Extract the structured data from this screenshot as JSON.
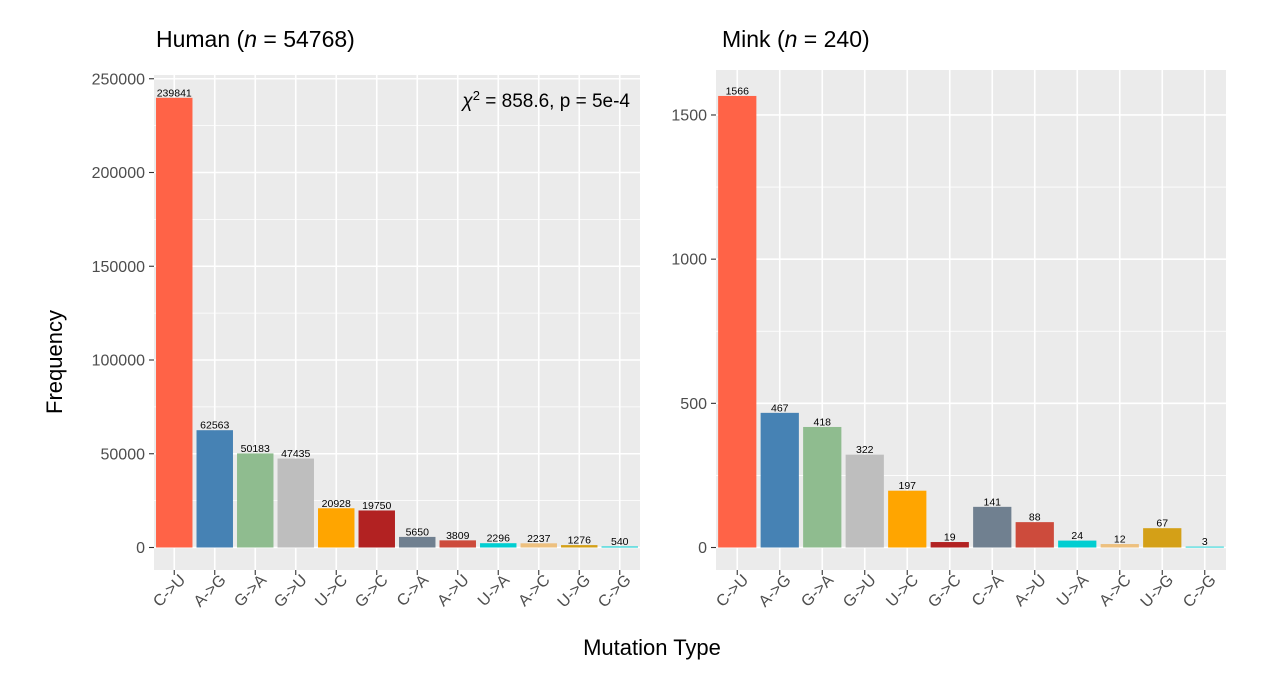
{
  "chart_data": [
    {
      "type": "bar",
      "title_prefix": "Human (",
      "title_n_symbol": "n",
      "title_suffix": " = 54768)",
      "annotation_chi": "χ",
      "annotation_sup": "2",
      "annotation_rest": " = 858.6, p = 5e-4",
      "categories": [
        "C->U",
        "A->G",
        "G->A",
        "G->U",
        "U->C",
        "G->C",
        "C->A",
        "A->U",
        "U->A",
        "A->C",
        "U->G",
        "C->G"
      ],
      "values": [
        239841,
        62563,
        50183,
        47435,
        20928,
        19750,
        5650,
        3809,
        2296,
        2237,
        1276,
        540
      ],
      "value_labels": [
        "239841",
        "62563",
        "50183",
        "47435",
        "20928",
        "19750",
        "5650",
        "3809",
        "2296",
        "2237",
        "1276",
        "540"
      ],
      "colors": [
        "#FF6347",
        "#4682B4",
        "#8FBC8F",
        "#BEBEBE",
        "#FFA500",
        "#B22222",
        "#708090",
        "#CD4B3C",
        "#00CED1",
        "#EDC07F",
        "#D4A017",
        "#00CED1"
      ],
      "ylim": [
        -12000,
        252000
      ],
      "yticks": [
        0,
        50000,
        100000,
        150000,
        200000,
        250000
      ],
      "ytick_labels": [
        "0",
        "50000",
        "100000",
        "150000",
        "200000",
        "250000"
      ]
    },
    {
      "type": "bar",
      "title_prefix": "Mink (",
      "title_n_symbol": "n",
      "title_suffix": " = 240)",
      "categories": [
        "C->U",
        "A->G",
        "G->A",
        "G->U",
        "U->C",
        "G->C",
        "C->A",
        "A->U",
        "U->A",
        "A->C",
        "U->G",
        "C->G"
      ],
      "values": [
        1566,
        467,
        418,
        322,
        197,
        19,
        141,
        88,
        24,
        12,
        67,
        3
      ],
      "value_labels": [
        "1566",
        "467",
        "418",
        "322",
        "197",
        "19",
        "141",
        "88",
        "24",
        "12",
        "67",
        "3"
      ],
      "colors": [
        "#FF6347",
        "#4682B4",
        "#8FBC8F",
        "#BEBEBE",
        "#FFA500",
        "#B22222",
        "#708090",
        "#CD4B3C",
        "#00CED1",
        "#EDC07F",
        "#D4A017",
        "#00CED1"
      ],
      "ylim": [
        -78,
        1656
      ],
      "yticks": [
        0,
        500,
        1000,
        1500
      ],
      "ytick_labels": [
        "0",
        "500",
        "1000",
        "1500"
      ]
    }
  ],
  "axes": {
    "ylabel": "Frequency",
    "xlabel": "Mutation Type"
  }
}
